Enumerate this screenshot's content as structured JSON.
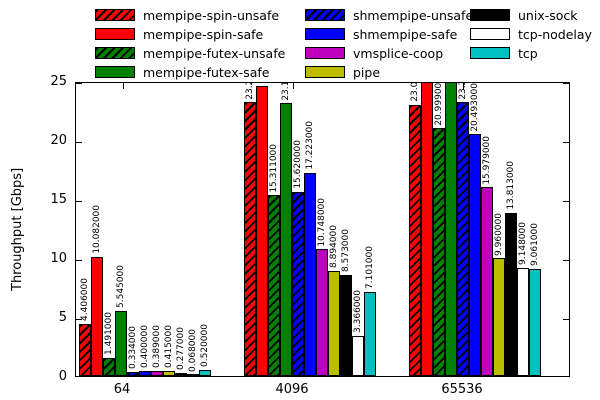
{
  "chart_data": {
    "type": "bar",
    "title": "",
    "xlabel": "",
    "ylabel": "Throughput [Gbps]",
    "categories": [
      "64",
      "4096",
      "65536"
    ],
    "ylim": [
      0,
      25
    ],
    "yticks": [
      0,
      5,
      10,
      15,
      20,
      25
    ],
    "grid": false,
    "legend_position": "top, three columns, outside plot",
    "bar_value_label_decimals": 6,
    "value_labels_rotated": true,
    "value_labels_clipped_at_plot_top": true,
    "series": [
      {
        "name": "mempipe-spin-unsafe",
        "color": "#ff0000",
        "hatched": true,
        "values": [
          4.406,
          23.2,
          23.0
        ]
      },
      {
        "name": "mempipe-spin-safe",
        "color": "#ff0000",
        "hatched": false,
        "values": [
          10.082,
          24.6,
          24.9
        ]
      },
      {
        "name": "mempipe-futex-unsafe",
        "color": "#008000",
        "hatched": true,
        "values": [
          1.491,
          15.311,
          20.999
        ]
      },
      {
        "name": "mempipe-futex-safe",
        "color": "#008000",
        "hatched": false,
        "values": [
          5.545,
          23.1,
          25.2
        ]
      },
      {
        "name": "shmempipe-unsafe",
        "color": "#0000ff",
        "hatched": true,
        "values": [
          0.334,
          15.62,
          23.2
        ]
      },
      {
        "name": "shmempipe-safe",
        "color": "#0000ff",
        "hatched": false,
        "values": [
          0.4,
          17.223,
          20.493
        ]
      },
      {
        "name": "vmsplice-coop",
        "color": "#c000c0",
        "hatched": false,
        "values": [
          0.389,
          10.748,
          15.979
        ]
      },
      {
        "name": "pipe",
        "color": "#bdbd00",
        "hatched": false,
        "values": [
          0.415,
          8.894,
          9.96
        ]
      },
      {
        "name": "unix-sock",
        "color": "#000000",
        "hatched": false,
        "values": [
          0.277,
          8.573,
          13.813
        ]
      },
      {
        "name": "tcp-nodelay",
        "color": "#ffffff",
        "hatched": false,
        "values": [
          0.068,
          3.366,
          9.148
        ]
      },
      {
        "name": "tcp",
        "color": "#00c0c0",
        "hatched": false,
        "values": [
          0.52,
          7.101,
          9.061
        ]
      }
    ],
    "legend_columns": [
      [
        0,
        1,
        2,
        3
      ],
      [
        4,
        5,
        6,
        7
      ],
      [
        8,
        9,
        10
      ]
    ],
    "axis_color": "#000000",
    "background_color": "#ffffff"
  }
}
